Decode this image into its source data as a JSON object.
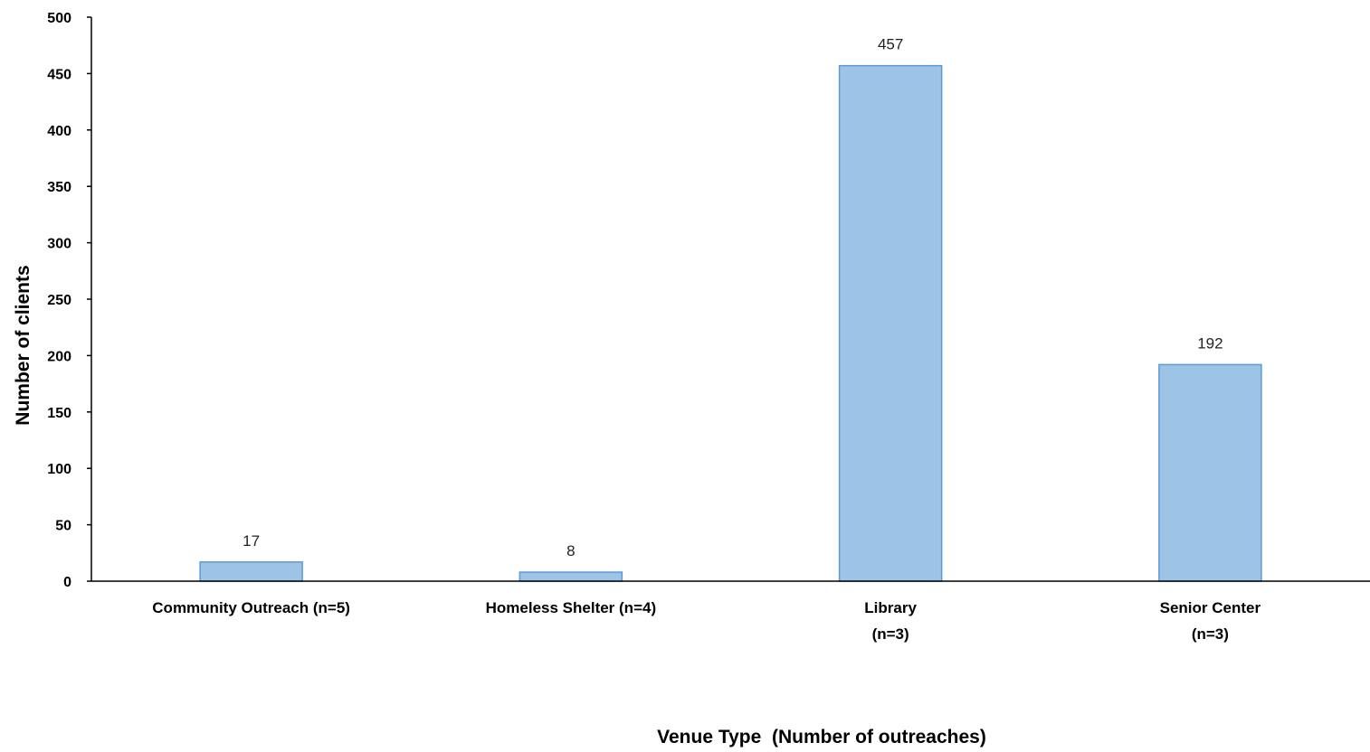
{
  "chart_data": {
    "type": "bar",
    "title": "",
    "xlabel": "Venue Type  (Number of outreaches)",
    "ylabel": "Number of clients",
    "categories": [
      [
        "Community Outreach (n=5)"
      ],
      [
        "Homeless Shelter (n=4)"
      ],
      [
        "Library",
        "(n=3)"
      ],
      [
        "Senior Center",
        "(n=3)"
      ]
    ],
    "values": [
      17,
      8,
      457,
      192
    ],
    "data_labels": [
      "17",
      "8",
      "457",
      "192"
    ],
    "ylim": [
      0,
      500
    ],
    "yticks": [
      0,
      50,
      100,
      150,
      200,
      250,
      300,
      350,
      400,
      450,
      500
    ],
    "grid": false,
    "legend": "none",
    "colors": {
      "bar_fill": "#9dc3e6",
      "bar_stroke": "#5b9bd5",
      "axis": "#000000"
    }
  }
}
